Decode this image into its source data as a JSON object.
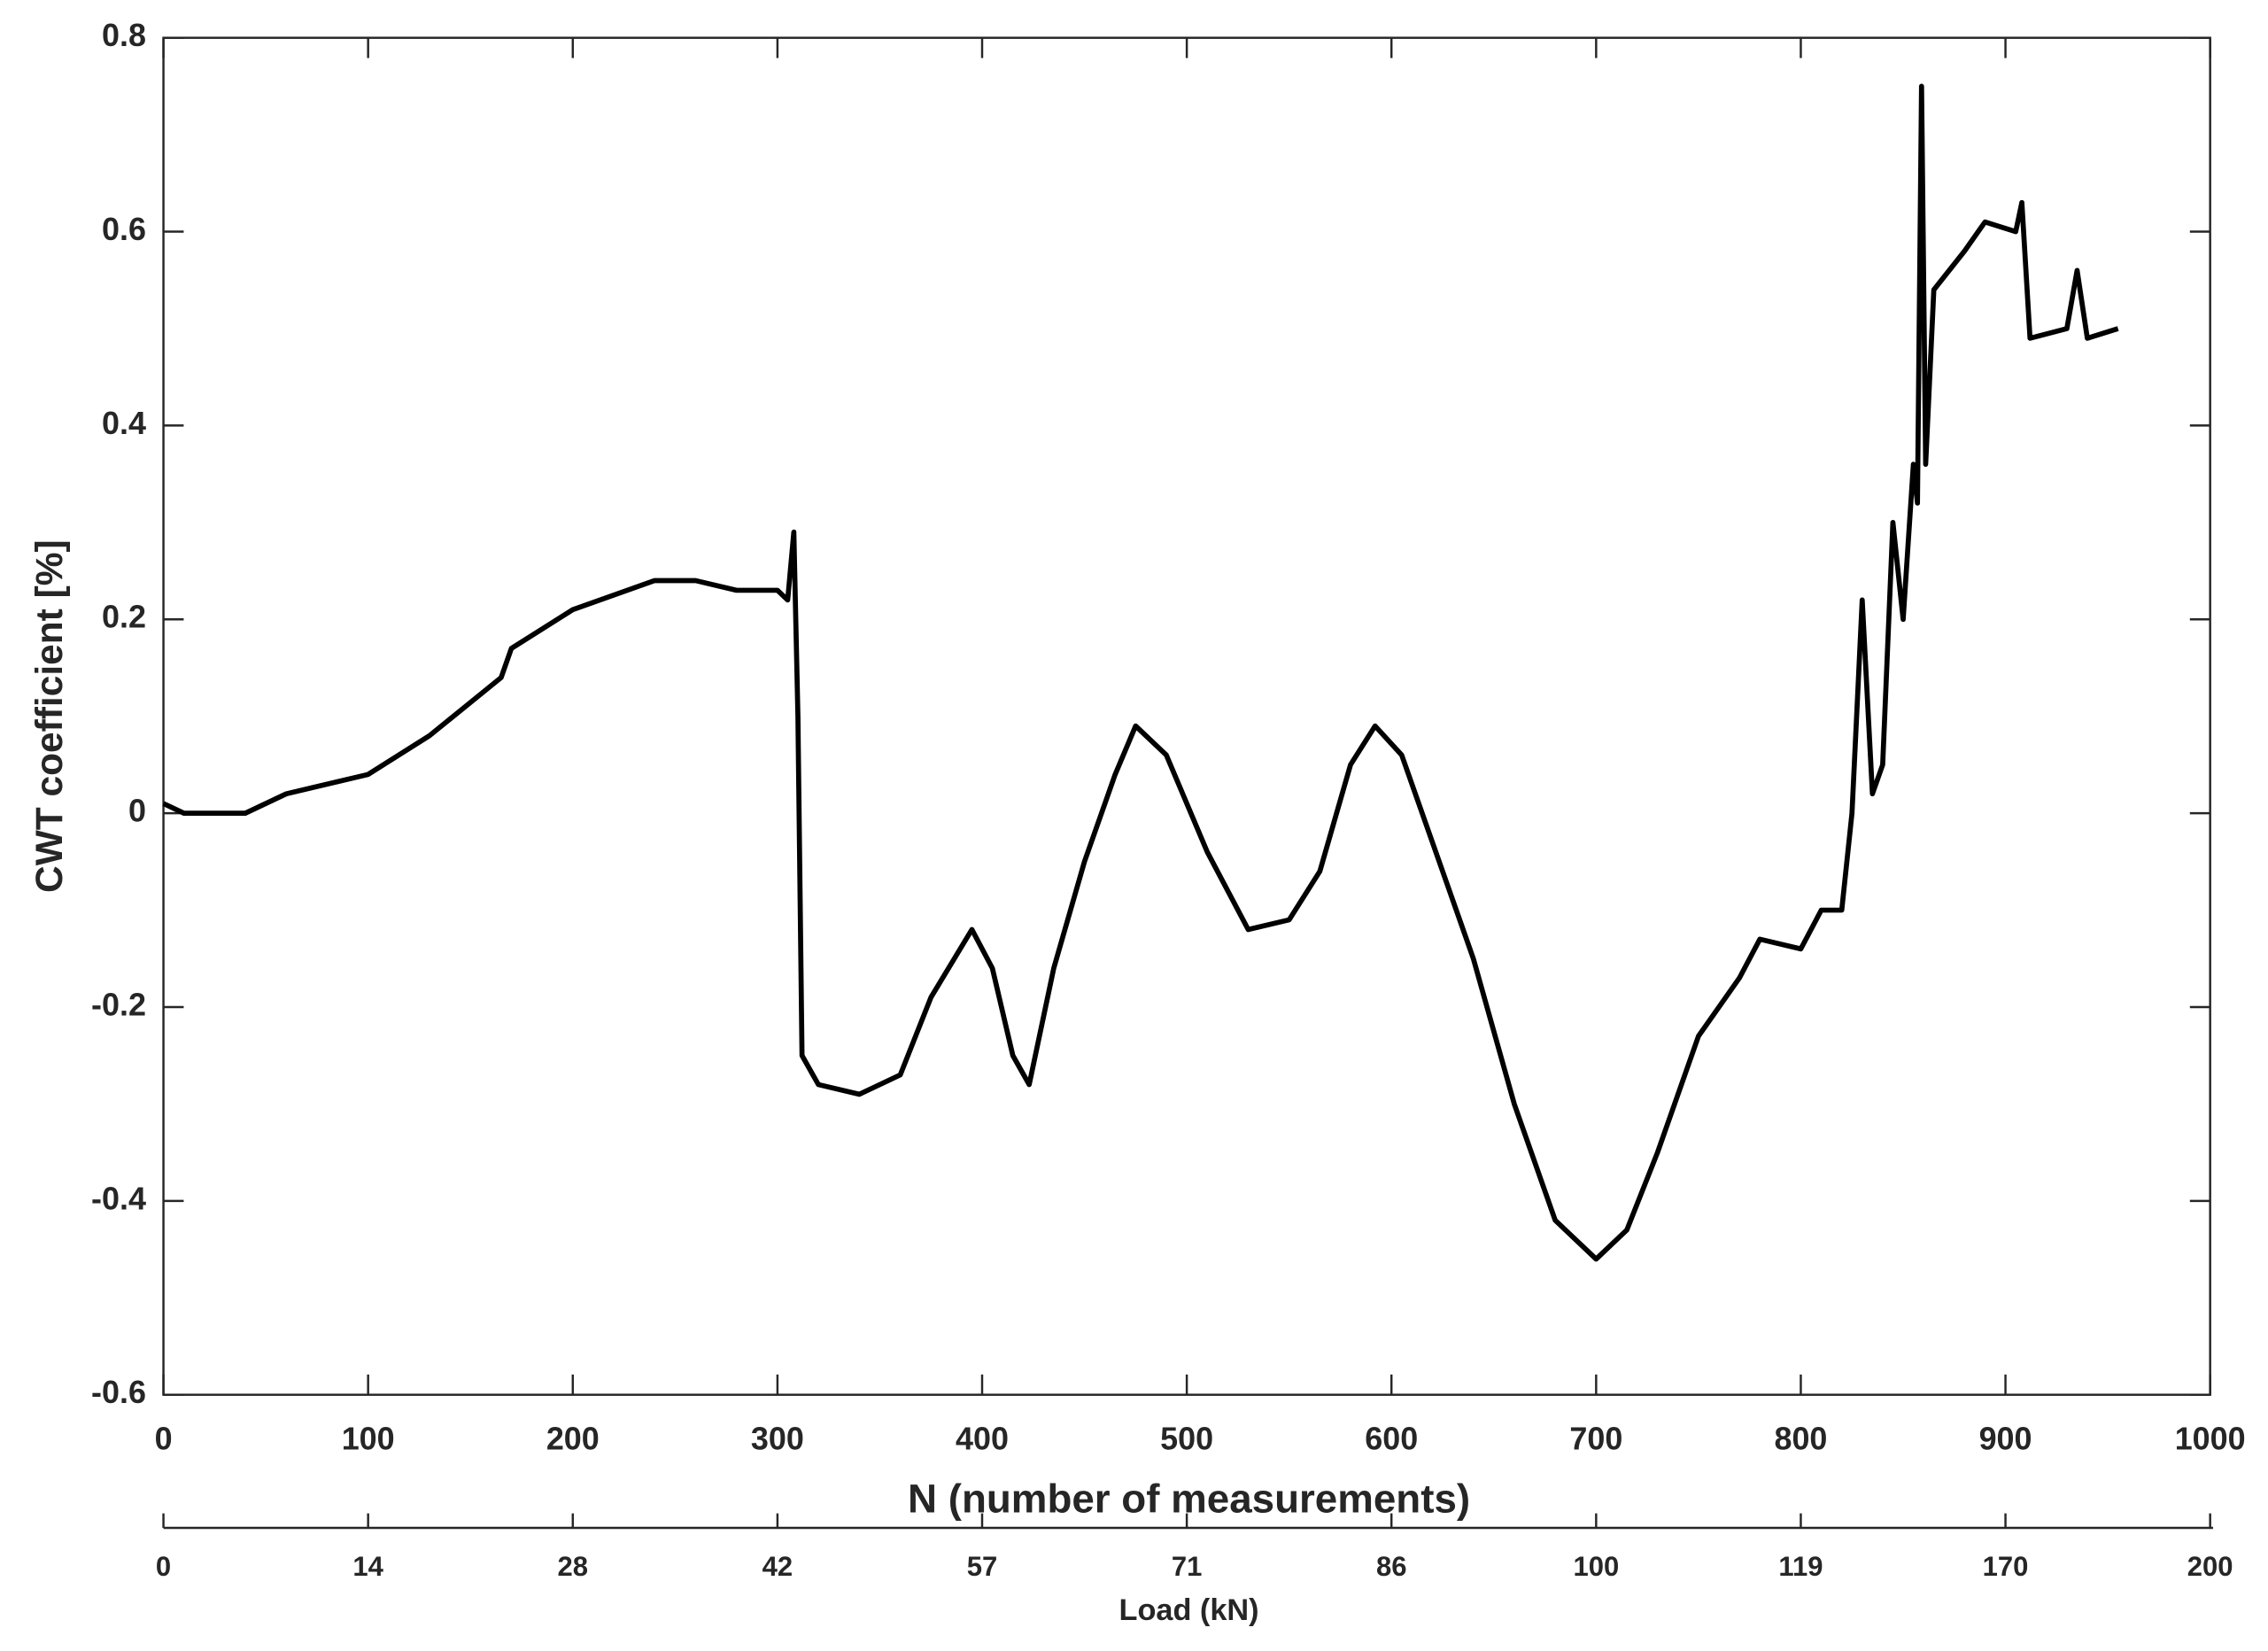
{
  "chart_data": {
    "type": "line",
    "ylabel": "CWT coefficient [%]",
    "xlabel": "N (number of measurements)",
    "x2label": "Load (kN)",
    "xlim": [
      0,
      1000
    ],
    "xticks": [
      0,
      100,
      200,
      300,
      400,
      500,
      600,
      700,
      800,
      900,
      1000
    ],
    "ylim": [
      -0.6,
      0.8
    ],
    "yticks": [
      -0.6,
      -0.4,
      -0.2,
      0,
      0.2,
      0.4,
      0.6,
      0.8
    ],
    "x2ticks": [
      {
        "value": 0,
        "label": "0"
      },
      {
        "value": 100,
        "label": "14"
      },
      {
        "value": 200,
        "label": "28"
      },
      {
        "value": 300,
        "label": "42"
      },
      {
        "value": 400,
        "label": "57"
      },
      {
        "value": 500,
        "label": "71"
      },
      {
        "value": 600,
        "label": "86"
      },
      {
        "value": 700,
        "label": "100"
      },
      {
        "value": 800,
        "label": "119"
      },
      {
        "value": 900,
        "label": "170"
      },
      {
        "value": 1000,
        "label": "200"
      }
    ],
    "grid": false,
    "x": [
      0,
      10,
      40,
      60,
      100,
      130,
      165,
      170,
      200,
      240,
      260,
      280,
      300,
      305,
      308,
      310,
      312,
      320,
      340,
      360,
      375,
      395,
      405,
      415,
      423,
      435,
      450,
      465,
      475,
      490,
      510,
      530,
      550,
      565,
      580,
      592,
      605,
      620,
      640,
      660,
      680,
      700,
      715,
      730,
      750,
      770,
      780,
      800,
      810,
      820,
      825,
      830,
      835,
      840,
      845,
      850,
      855,
      857,
      859,
      861,
      865,
      880,
      890,
      905,
      908,
      912,
      930,
      935,
      940,
      955
    ],
    "series": [
      {
        "name": "CWT",
        "color": "#000000",
        "values": [
          0.01,
          0.0,
          0.0,
          0.02,
          0.04,
          0.08,
          0.14,
          0.17,
          0.21,
          0.24,
          0.24,
          0.23,
          0.23,
          0.22,
          0.29,
          0.1,
          -0.25,
          -0.28,
          -0.29,
          -0.27,
          -0.19,
          -0.12,
          -0.16,
          -0.25,
          -0.28,
          -0.16,
          -0.05,
          0.04,
          0.09,
          0.06,
          -0.04,
          -0.12,
          -0.11,
          -0.06,
          0.05,
          0.09,
          0.06,
          -0.03,
          -0.15,
          -0.3,
          -0.42,
          -0.46,
          -0.43,
          -0.35,
          -0.23,
          -0.17,
          -0.13,
          -0.14,
          -0.1,
          -0.1,
          0.0,
          0.22,
          0.02,
          0.05,
          0.3,
          0.2,
          0.36,
          0.32,
          0.75,
          0.36,
          0.54,
          0.58,
          0.61,
          0.6,
          0.63,
          0.49,
          0.5,
          0.56,
          0.49,
          0.5
        ]
      }
    ]
  }
}
